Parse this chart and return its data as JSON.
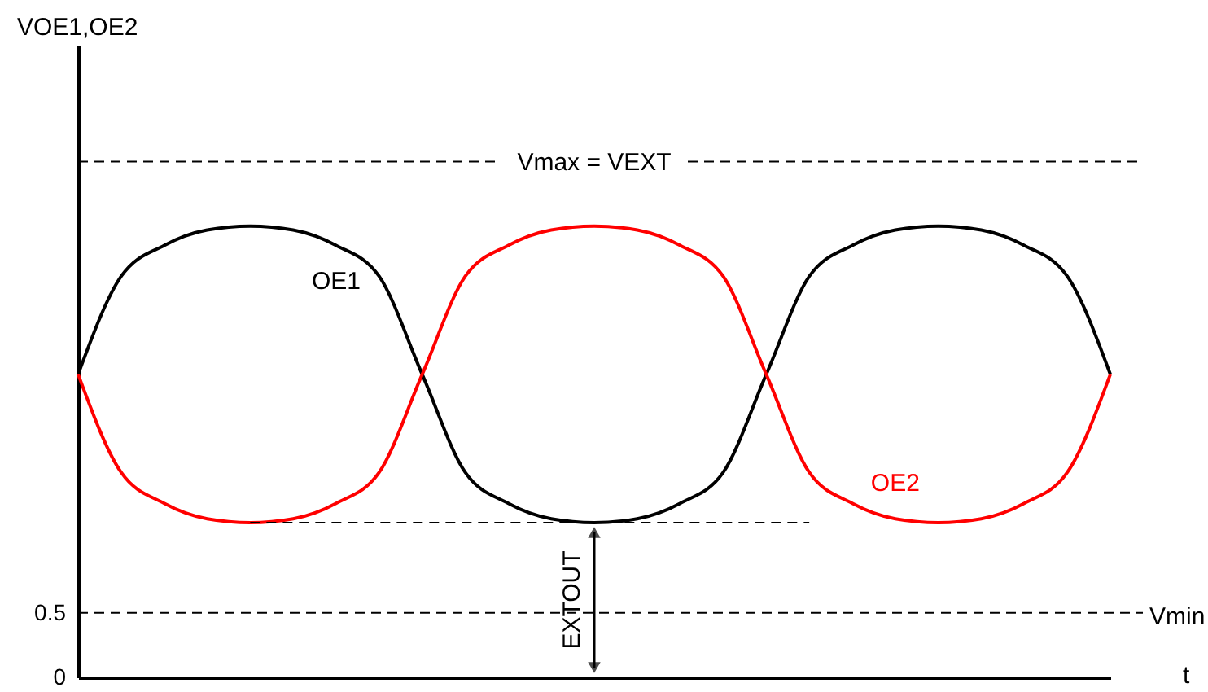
{
  "chart_data": {
    "type": "line",
    "ylabel": "VOE1,OE2",
    "xlabel": "t",
    "categories": [
      null,
      null,
      null,
      null,
      null,
      null,
      null,
      null,
      null,
      null,
      null,
      null,
      null,
      null,
      null,
      null,
      null,
      null,
      null,
      null,
      null,
      null,
      null,
      null,
      null
    ],
    "series": [
      {
        "name": "OE1",
        "color": "#000000",
        "values": [
          2.35,
          3.11,
          3.35,
          3.47,
          3.5,
          3.47,
          3.35,
          3.11,
          2.35,
          1.59,
          1.35,
          1.23,
          1.2,
          1.23,
          1.35,
          1.59,
          2.35,
          3.11,
          3.35,
          3.47,
          3.5,
          3.47,
          3.35,
          3.11,
          2.35
        ]
      },
      {
        "name": "OE2",
        "color": "#ff0000",
        "values": [
          2.35,
          1.59,
          1.35,
          1.23,
          1.2,
          1.23,
          1.35,
          1.59,
          2.35,
          3.11,
          3.35,
          3.47,
          3.5,
          3.47,
          3.35,
          3.11,
          2.35,
          1.59,
          1.35,
          1.23,
          1.2,
          1.23,
          1.35,
          1.59,
          2.35
        ]
      },
      {
        "type": "line",
        "color": "#000000",
        "line_style": "dashed",
        "values": [
          null,
          null,
          null,
          null,
          1.2,
          1.2,
          1.2,
          1.2,
          1.2,
          1.2,
          1.2,
          1.2,
          1.2,
          1.2,
          1.2,
          1.2,
          1.2,
          1.2,
          null,
          null,
          null,
          null,
          null,
          null,
          null
        ]
      }
    ],
    "ylim": [
      0,
      4.9
    ],
    "yticks": [
      {
        "value": 0,
        "label": "0"
      },
      0.5
    ],
    "tick_labels": "y",
    "grid": false,
    "marker": "none",
    "line_style": "solid",
    "ref_lines": [
      {
        "axis": "y",
        "value": 4.0,
        "label": "Vmax = VEXT",
        "color": "#000000",
        "line_style": "dashed"
      },
      {
        "axis": "y",
        "value": 0.5,
        "label": "Vmin",
        "color": "#000000",
        "line_style": "dashed"
      }
    ],
    "annotations": [
      "EXTOUT"
    ]
  }
}
